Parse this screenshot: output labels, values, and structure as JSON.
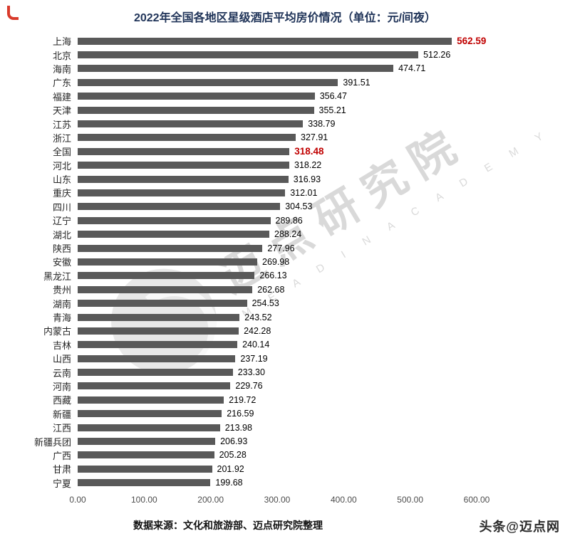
{
  "title": "2022年全国各地区星级酒店平均房价情况（单位：元/间夜）",
  "chart_data": {
    "type": "bar",
    "orientation": "horizontal",
    "title": "2022年全国各地区星级酒店平均房价情况（单位：元/间夜）",
    "categories": [
      "上海",
      "北京",
      "海南",
      "广东",
      "福建",
      "天津",
      "江苏",
      "浙江",
      "全国",
      "河北",
      "山东",
      "重庆",
      "四川",
      "辽宁",
      "湖北",
      "陕西",
      "安徽",
      "黑龙江",
      "贵州",
      "湖南",
      "青海",
      "内蒙古",
      "吉林",
      "山西",
      "云南",
      "河南",
      "西藏",
      "新疆",
      "江西",
      "新疆兵团",
      "广西",
      "甘肃",
      "宁夏"
    ],
    "values": [
      562.59,
      512.26,
      474.71,
      391.51,
      356.47,
      355.21,
      338.79,
      327.91,
      318.48,
      318.22,
      316.93,
      312.01,
      304.53,
      289.86,
      288.24,
      277.96,
      269.98,
      266.13,
      262.68,
      254.53,
      243.52,
      242.28,
      240.14,
      237.19,
      233.3,
      229.76,
      219.72,
      216.59,
      213.98,
      206.93,
      205.28,
      201.92,
      199.68
    ],
    "highlighted": [
      "上海",
      "全国"
    ],
    "xlim": [
      0,
      600
    ],
    "x_ticks": [
      "0.00",
      "100.00",
      "200.00",
      "300.00",
      "400.00",
      "500.00",
      "600.00"
    ],
    "bar_color": "#595959",
    "highlight_value_color": "#c00000",
    "grid": false,
    "legend": "none"
  },
  "footer": {
    "source": "数据来源：文化和旅游部、迈点研究院整理"
  },
  "branding": {
    "credit": "头条@迈点网",
    "watermark_cn": "迈点研究院",
    "watermark_en": "M E A D I N  A C A D E M Y"
  }
}
